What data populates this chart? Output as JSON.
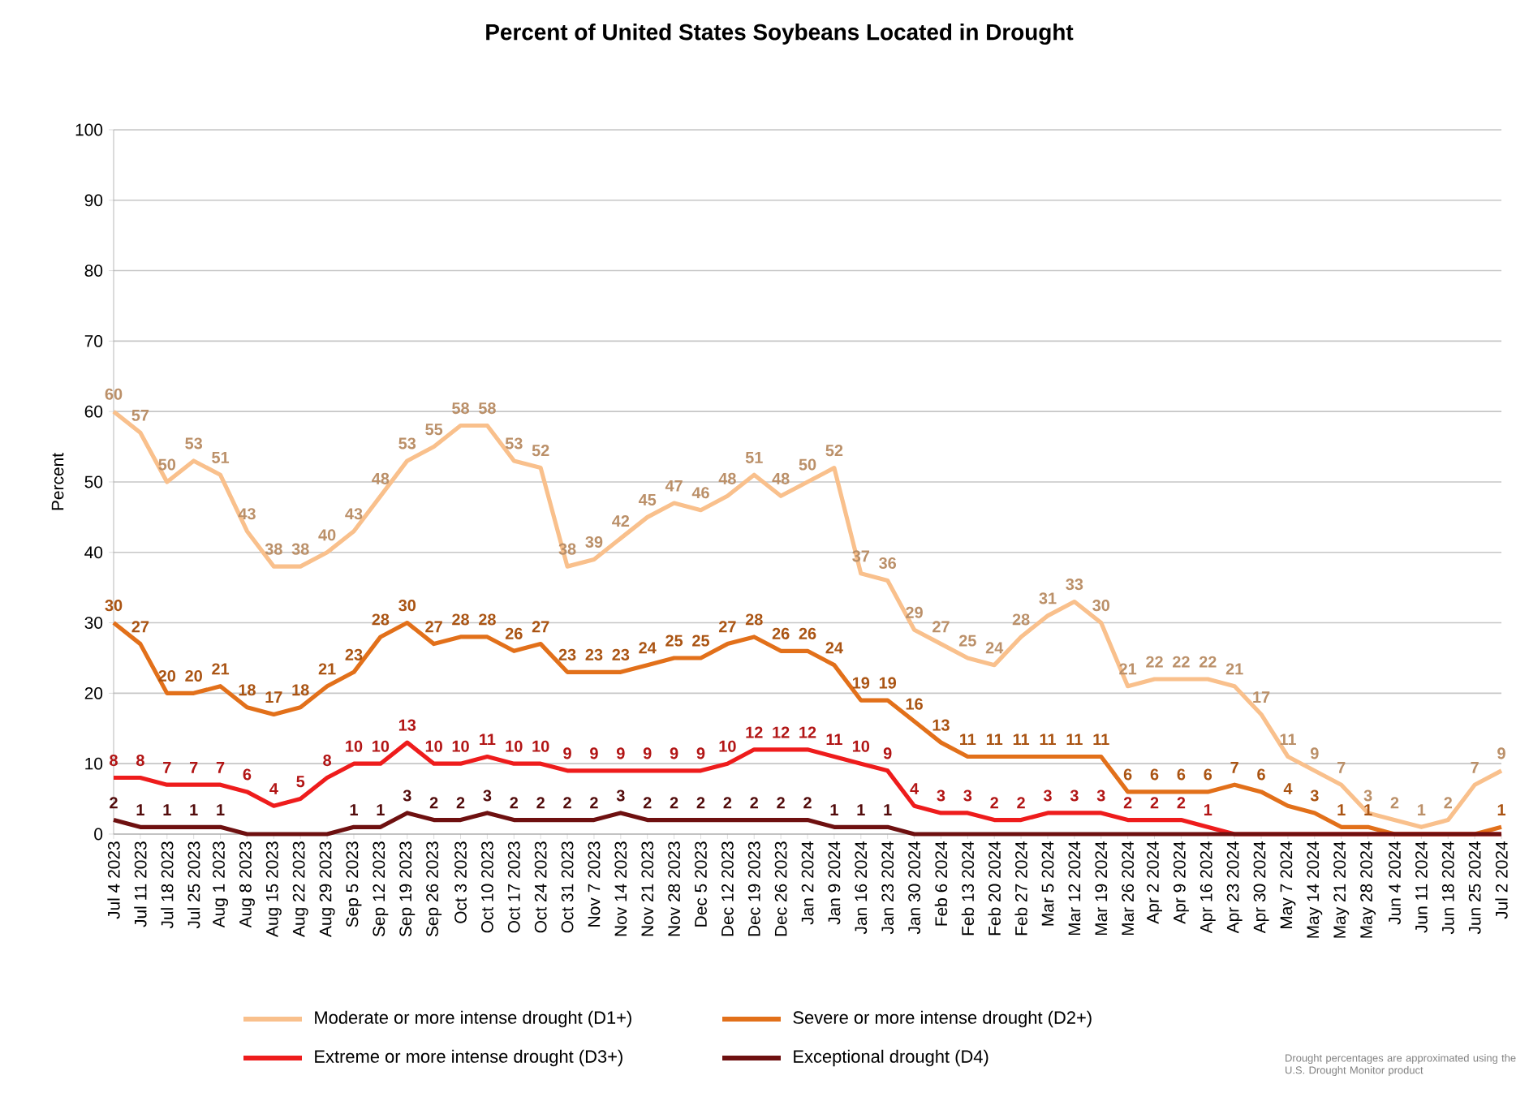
{
  "chart_data": {
    "type": "line",
    "title": "Percent of United States Soybeans Located in Drought",
    "ylabel": "Percent",
    "categories": [
      "Jul 4 2023",
      "Jul 11 2023",
      "Jul 18 2023",
      "Jul 25 2023",
      "Aug 1 2023",
      "Aug 8 2023",
      "Aug 15 2023",
      "Aug 22 2023",
      "Aug 29 2023",
      "Sep 5 2023",
      "Sep 12 2023",
      "Sep 19 2023",
      "Sep 26 2023",
      "Oct 3 2023",
      "Oct 10 2023",
      "Oct 17 2023",
      "Oct 24 2023",
      "Oct 31 2023",
      "Nov 7 2023",
      "Nov 14 2023",
      "Nov 21 2023",
      "Nov 28 2023",
      "Dec 5 2023",
      "Dec 12 2023",
      "Dec 19 2023",
      "Dec 26 2023",
      "Jan 2 2024",
      "Jan 9 2024",
      "Jan 16 2024",
      "Jan 23 2024",
      "Jan 30 2024",
      "Feb 6 2024",
      "Feb 13 2024",
      "Feb 20 2024",
      "Feb 27 2024",
      "Mar 5 2024",
      "Mar 12 2024",
      "Mar 19 2024",
      "Mar 26 2024",
      "Apr 2 2024",
      "Apr 9 2024",
      "Apr 16 2024",
      "Apr 23 2024",
      "Apr 30 2024",
      "May 7 2024",
      "May 14 2024",
      "May 21 2024",
      "May 28 2024",
      "Jun 4 2024",
      "Jun 11 2024",
      "Jun 18 2024",
      "Jun 25 2024",
      "Jul 2 2024"
    ],
    "series": [
      {
        "name": "Moderate or more intense drought (D1+)",
        "color": "#f9c08c",
        "values": [
          60,
          57,
          50,
          53,
          51,
          43,
          38,
          38,
          40,
          43,
          48,
          53,
          55,
          58,
          58,
          53,
          52,
          38,
          39,
          42,
          45,
          47,
          46,
          48,
          51,
          48,
          50,
          52,
          37,
          36,
          29,
          27,
          25,
          24,
          28,
          31,
          33,
          30,
          21,
          22,
          22,
          22,
          21,
          17,
          11,
          9,
          7,
          3,
          2,
          1,
          2,
          7,
          9
        ],
        "value_labels": [
          "60",
          "57",
          "50",
          "53",
          "51",
          "43",
          "38",
          "38",
          "40",
          "43",
          "48",
          "53",
          "55",
          "58",
          "58",
          "53",
          "52",
          "38",
          "39",
          "42",
          "45",
          "47",
          "46",
          "48",
          "51",
          "48",
          "50",
          "52",
          "37",
          "36",
          "29",
          "27",
          "25",
          "24",
          "28",
          "31",
          "33",
          "30",
          "21",
          "22",
          "22",
          "22",
          "21",
          "17",
          "11",
          "9",
          "7",
          "3",
          "2",
          "1",
          "2",
          "7",
          "9"
        ]
      },
      {
        "name": "Severe or more intense drought (D2+)",
        "color": "#e2701a",
        "values": [
          30,
          27,
          20,
          20,
          21,
          18,
          17,
          18,
          21,
          23,
          28,
          30,
          27,
          28,
          28,
          26,
          27,
          23,
          23,
          23,
          24,
          25,
          25,
          27,
          28,
          26,
          26,
          24,
          19,
          19,
          16,
          13,
          11,
          11,
          11,
          11,
          11,
          11,
          6,
          6,
          6,
          6,
          7,
          6,
          4,
          3,
          1,
          1,
          0,
          0,
          0,
          0,
          1
        ],
        "value_labels": [
          "30",
          "27",
          "20",
          "20",
          "21",
          "18",
          "17",
          "18",
          "21",
          "23",
          "28",
          "30",
          "27",
          "28",
          "28",
          "26",
          "27",
          "23",
          "23",
          "23",
          "24",
          "25",
          "25",
          "27",
          "28",
          "26",
          "26",
          "24",
          "19",
          "19",
          "16",
          "13",
          "11",
          "11",
          "11",
          "11",
          "11",
          "11",
          "6",
          "6",
          "6",
          "6",
          "7",
          "6",
          "4",
          "3",
          "1",
          "1",
          null,
          null,
          null,
          null,
          "1"
        ]
      },
      {
        "name": "Extreme or more intense drought (D3+)",
        "color": "#ee1c1c",
        "values": [
          8,
          8,
          7,
          7,
          7,
          6,
          4,
          5,
          8,
          10,
          10,
          13,
          10,
          10,
          11,
          10,
          10,
          9,
          9,
          9,
          9,
          9,
          9,
          10,
          12,
          12,
          12,
          11,
          10,
          9,
          4,
          3,
          3,
          2,
          2,
          3,
          3,
          3,
          2,
          2,
          2,
          1,
          0,
          0,
          0,
          0,
          0,
          0,
          0,
          0,
          0,
          0,
          0
        ],
        "value_labels": [
          "8",
          "8",
          "7",
          "7",
          "7",
          "6",
          "4",
          "5",
          "8",
          "10",
          "10",
          "13",
          "10",
          "10",
          "11",
          "10",
          "10",
          "9",
          "9",
          "9",
          "9",
          "9",
          "9",
          "10",
          "12",
          "12",
          "12",
          "11",
          "10",
          "9",
          "4",
          "3",
          "3",
          "2",
          "2",
          "3",
          "3",
          "3",
          "2",
          "2",
          "2",
          "1",
          null,
          null,
          null,
          null,
          null,
          null,
          null,
          null,
          null,
          null,
          null
        ]
      },
      {
        "name": "Exceptional drought (D4)",
        "color": "#6e1010",
        "values": [
          2,
          1,
          1,
          1,
          1,
          0,
          0,
          0,
          0,
          1,
          1,
          3,
          2,
          2,
          3,
          2,
          2,
          2,
          2,
          3,
          2,
          2,
          2,
          2,
          2,
          2,
          2,
          1,
          1,
          1,
          0,
          0,
          0,
          0,
          0,
          0,
          0,
          0,
          0,
          0,
          0,
          0,
          0,
          0,
          0,
          0,
          0,
          0,
          0,
          0,
          0,
          0,
          0
        ],
        "value_labels": [
          "2",
          "1",
          "1",
          "1",
          "1",
          null,
          null,
          null,
          null,
          "1",
          "1",
          "3",
          "2",
          "2",
          "3",
          "2",
          "2",
          "2",
          "2",
          "3",
          "2",
          "2",
          "2",
          "2",
          "2",
          "2",
          "2",
          "1",
          "1",
          "1",
          null,
          null,
          null,
          null,
          null,
          null,
          null,
          null,
          null,
          null,
          null,
          null,
          null,
          null,
          null,
          null,
          null,
          null,
          null,
          null,
          null,
          null,
          null
        ]
      }
    ],
    "ylim": [
      0,
      100
    ],
    "yticks": [
      0,
      10,
      20,
      30,
      40,
      50,
      60,
      70,
      80,
      90,
      100
    ],
    "grid": "y",
    "legend": "bottom",
    "marker": "none",
    "line_style": "solid",
    "annotations": [
      "Drought percentages are approximated using the U.S. Drought Monitor product"
    ]
  }
}
